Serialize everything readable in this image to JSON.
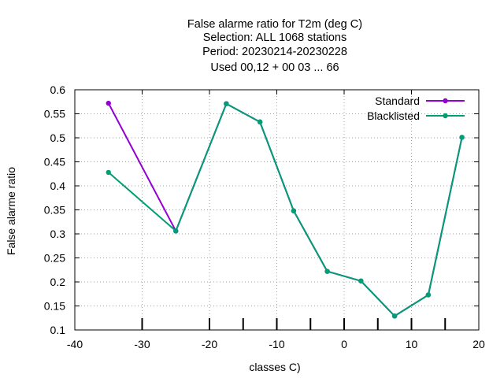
{
  "chart_data": {
    "type": "line",
    "title_lines": [
      "False alarme ratio  for T2m (deg C)",
      "Selection: ALL   1068 stations",
      "Period: 20230214-20230228",
      "Used  00,12  + 00 03 ... 66"
    ],
    "xlabel": "classes C)",
    "ylabel": "False alarme ratio",
    "xlim": [
      -40,
      20
    ],
    "ylim": [
      0.1,
      0.6
    ],
    "x_ticks": [
      -40,
      -30,
      -20,
      -10,
      0,
      10,
      20
    ],
    "y_ticks": [
      0.1,
      0.15,
      0.2,
      0.25,
      0.3,
      0.35,
      0.4,
      0.45,
      0.5,
      0.55,
      0.6
    ],
    "y_tick_labels": [
      "0.1",
      "0.15",
      "0.2",
      "0.25",
      "0.3",
      "0.35",
      "0.4",
      "0.45",
      "0.5",
      "0.55",
      "0.6"
    ],
    "grid": true,
    "legend_position": "top-right",
    "series": [
      {
        "name": "Standard",
        "color": "#9400d3",
        "x": [
          -35,
          -25,
          -17.5,
          -12.5,
          -7.5,
          -2.5,
          2.5,
          7.5,
          12.5,
          17.5
        ],
        "y": [
          0.572,
          0.306,
          0.571,
          0.533,
          0.348,
          0.222,
          0.202,
          0.129,
          0.173,
          0.501
        ]
      },
      {
        "name": "Blacklisted",
        "color": "#009e73",
        "x": [
          -35,
          -25,
          -17.5,
          -12.5,
          -7.5,
          -2.5,
          2.5,
          7.5,
          12.5,
          17.5
        ],
        "y": [
          0.428,
          0.306,
          0.571,
          0.533,
          0.348,
          0.222,
          0.202,
          0.129,
          0.173,
          0.501
        ]
      }
    ],
    "class_markers_x": [
      -30,
      -20,
      -15,
      -10,
      -5,
      0,
      5,
      10,
      15
    ]
  }
}
